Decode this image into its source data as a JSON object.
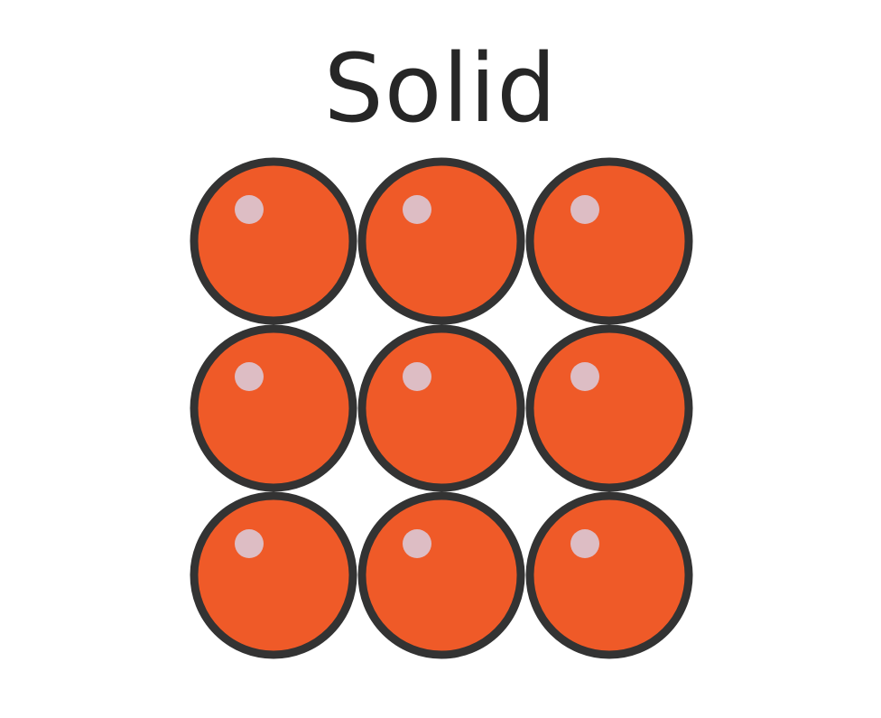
{
  "title": "Solid",
  "particles": {
    "rows": 3,
    "cols": 3,
    "fill_color": "#EF5A28",
    "outline_color": "#333333",
    "highlight_color": "#DDBDC4"
  }
}
